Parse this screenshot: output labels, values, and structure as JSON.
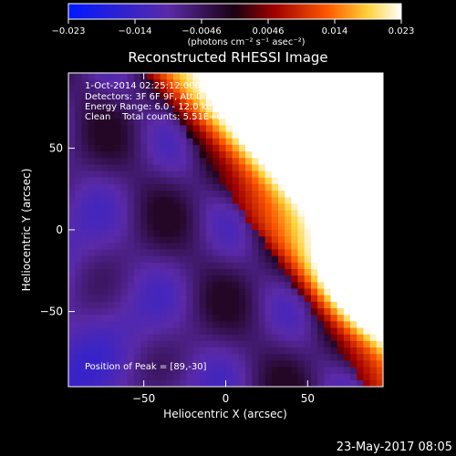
{
  "colorbar": {
    "ticks": [
      "−0.023",
      "−0.014",
      "−0.0046",
      "0.0046",
      "0.014",
      "0.023"
    ],
    "unit_label": "(photons cm⁻² s⁻¹ asec⁻²)"
  },
  "chart_data": {
    "type": "heatmap",
    "title": "Reconstructed RHESSI Image",
    "xlabel": "Heliocentric X (arcsec)",
    "ylabel": "Heliocentric Y (arcsec)",
    "xlim": [
      -96,
      96
    ],
    "ylim": [
      -96,
      96
    ],
    "x_ticks": [
      -50,
      0,
      50
    ],
    "y_ticks": [
      50,
      0,
      -50
    ],
    "colorbar_range": [
      -0.023,
      0.023
    ],
    "colormap": [
      "#0018ff",
      "#5a2aa8",
      "#1a0010",
      "#a00000",
      "#ff5a00",
      "#ffd23a",
      "#ffffff"
    ],
    "peak": [
      89,
      -30
    ],
    "peak_value": 0.023
  },
  "info": {
    "time_range": "1-Oct-2014 02:25:12.000 to 02:35:12.000",
    "detectors": "Detectors: 3F 6F 9F, Att 0",
    "energy": "Energy Range: 6.0 - 12.0 keV",
    "clean": "Clean    Total counts: 5.51E+04",
    "peak": "Position of Peak = [89,-30]"
  },
  "footer": {
    "date": "23-May-2017 08:05"
  }
}
